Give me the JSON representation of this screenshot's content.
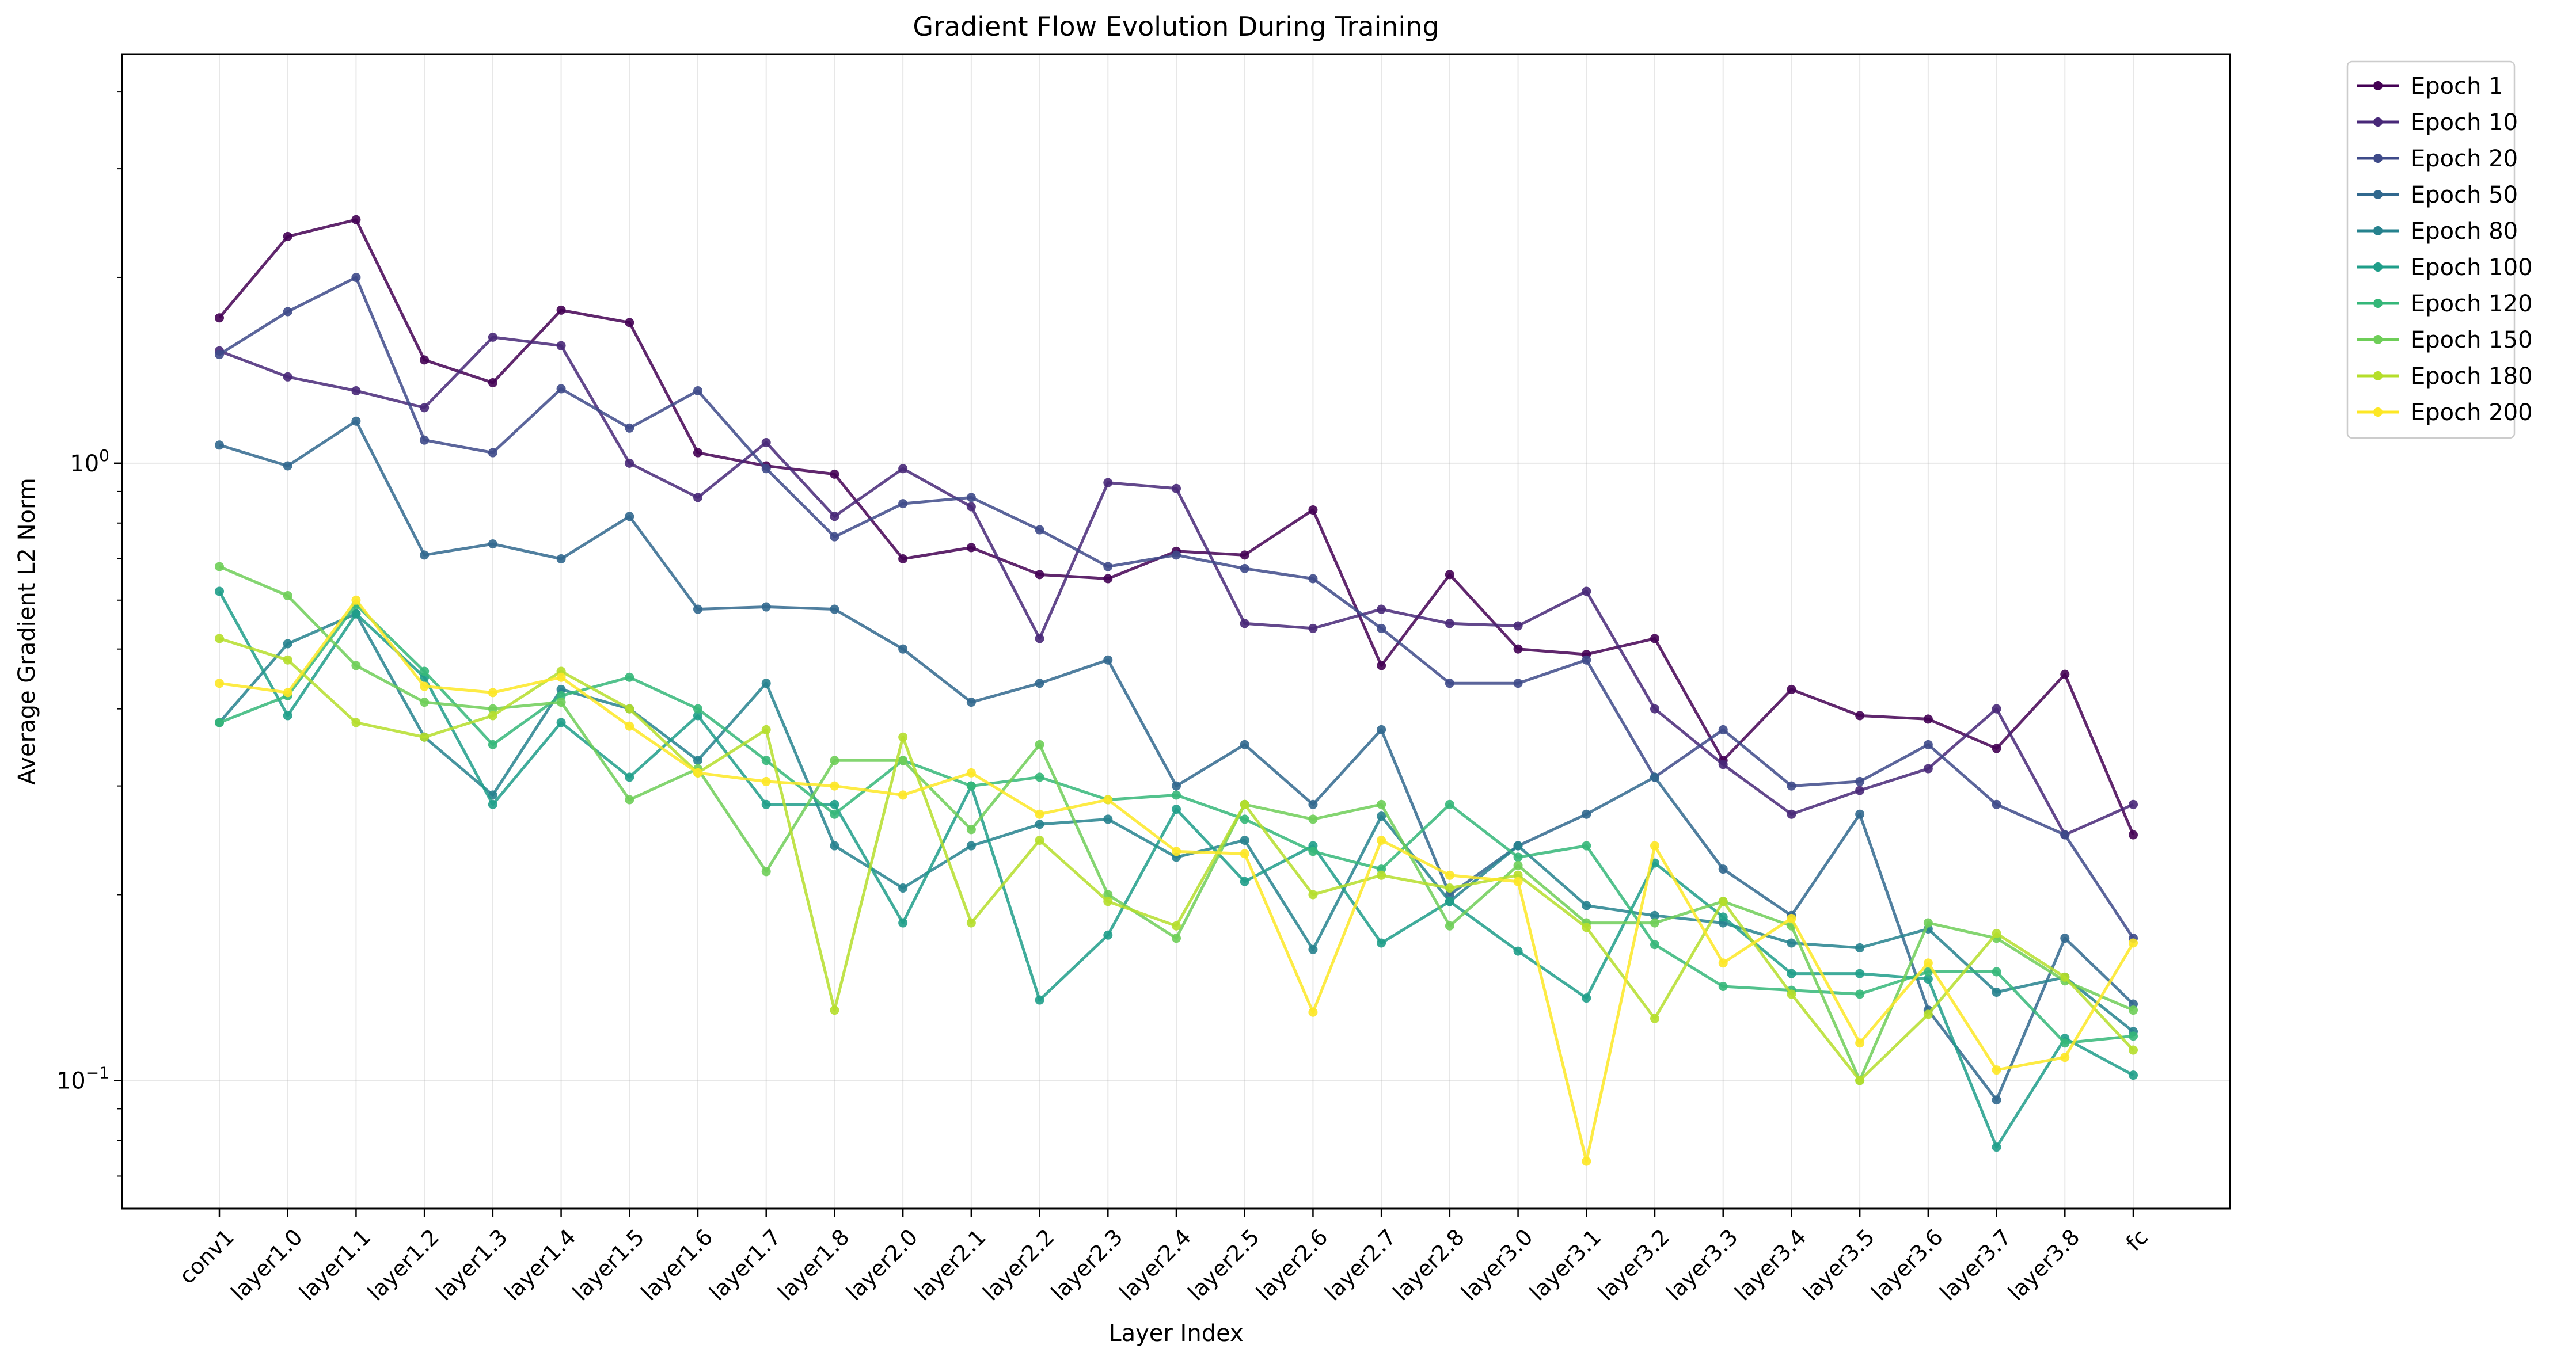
{
  "chart_data": {
    "type": "line",
    "title": "Gradient Flow Evolution During Training",
    "xlabel": "Layer Index",
    "ylabel": "Average Gradient L2 Norm",
    "yscale": "log",
    "ylim": [
      0.062,
      4.6
    ],
    "yticks": [
      {
        "value": 1.0,
        "base": "10",
        "exp": "0"
      },
      {
        "value": 0.1,
        "base": "10",
        "exp": "−1"
      }
    ],
    "grid": true,
    "legend_position": "outside-top-right",
    "categories": [
      "conv1",
      "layer1.0",
      "layer1.1",
      "layer1.2",
      "layer1.3",
      "layer1.4",
      "layer1.5",
      "layer1.6",
      "layer1.7",
      "layer1.8",
      "layer2.0",
      "layer2.1",
      "layer2.2",
      "layer2.3",
      "layer2.4",
      "layer2.5",
      "layer2.6",
      "layer2.7",
      "layer2.8",
      "layer3.0",
      "layer3.1",
      "layer3.2",
      "layer3.3",
      "layer3.4",
      "layer3.5",
      "layer3.6",
      "layer3.7",
      "layer3.8",
      "fc"
    ],
    "series": [
      {
        "name": "Epoch 1",
        "color": "#440154",
        "values": [
          1.72,
          2.33,
          2.48,
          1.47,
          1.35,
          1.77,
          1.69,
          1.04,
          0.99,
          0.96,
          0.7,
          0.73,
          0.66,
          0.65,
          0.72,
          0.71,
          0.84,
          0.47,
          0.66,
          0.5,
          0.49,
          0.52,
          0.33,
          0.43,
          0.39,
          0.385,
          0.345,
          0.455,
          0.25
        ]
      },
      {
        "name": "Epoch 10",
        "color": "#482878",
        "values": [
          1.52,
          1.38,
          1.31,
          1.23,
          1.6,
          1.55,
          1.0,
          0.88,
          1.08,
          0.82,
          0.98,
          0.85,
          0.52,
          0.93,
          0.91,
          0.55,
          0.54,
          0.58,
          0.55,
          0.545,
          0.62,
          0.4,
          0.325,
          0.27,
          0.295,
          0.32,
          0.4,
          0.25,
          0.28
        ]
      },
      {
        "name": "Epoch 20",
        "color": "#3e4a89",
        "values": [
          1.5,
          1.76,
          2.0,
          1.09,
          1.04,
          1.32,
          1.14,
          1.31,
          0.98,
          0.76,
          0.86,
          0.88,
          0.78,
          0.68,
          0.71,
          0.675,
          0.65,
          0.54,
          0.44,
          0.44,
          0.48,
          0.31,
          0.37,
          0.3,
          0.305,
          0.35,
          0.28,
          0.25,
          0.17
        ]
      },
      {
        "name": "Epoch 50",
        "color": "#31688e",
        "values": [
          1.07,
          0.99,
          1.17,
          0.71,
          0.74,
          0.7,
          0.82,
          0.58,
          0.585,
          0.58,
          0.5,
          0.41,
          0.44,
          0.48,
          0.3,
          0.35,
          0.28,
          0.37,
          0.2,
          0.24,
          0.27,
          0.31,
          0.22,
          0.185,
          0.27,
          0.13,
          0.093,
          0.17,
          0.133
        ]
      },
      {
        "name": "Epoch 80",
        "color": "#26828e",
        "values": [
          0.38,
          0.51,
          0.57,
          0.36,
          0.29,
          0.43,
          0.4,
          0.33,
          0.44,
          0.24,
          0.205,
          0.24,
          0.26,
          0.265,
          0.23,
          0.245,
          0.163,
          0.268,
          0.195,
          0.24,
          0.192,
          0.185,
          0.18,
          0.167,
          0.164,
          0.176,
          0.139,
          0.147,
          0.12
        ]
      },
      {
        "name": "Epoch 100",
        "color": "#1f9e89",
        "values": [
          0.62,
          0.39,
          0.57,
          0.45,
          0.28,
          0.38,
          0.31,
          0.39,
          0.28,
          0.28,
          0.18,
          0.3,
          0.135,
          0.172,
          0.275,
          0.21,
          0.24,
          0.167,
          0.195,
          0.162,
          0.136,
          0.225,
          0.184,
          0.149,
          0.149,
          0.146,
          0.078,
          0.117,
          0.102
        ]
      },
      {
        "name": "Epoch 120",
        "color": "#35b779",
        "values": [
          0.38,
          0.42,
          0.59,
          0.46,
          0.35,
          0.42,
          0.45,
          0.4,
          0.33,
          0.27,
          0.33,
          0.3,
          0.31,
          0.285,
          0.29,
          0.265,
          0.235,
          0.22,
          0.28,
          0.23,
          0.24,
          0.166,
          0.142,
          0.14,
          0.138,
          0.15,
          0.15,
          0.115,
          0.118
        ]
      },
      {
        "name": "Epoch 150",
        "color": "#6ece58",
        "values": [
          0.68,
          0.61,
          0.47,
          0.41,
          0.4,
          0.41,
          0.285,
          0.32,
          0.218,
          0.33,
          0.33,
          0.255,
          0.35,
          0.2,
          0.17,
          0.28,
          0.265,
          0.28,
          0.178,
          0.223,
          0.18,
          0.18,
          0.195,
          0.178,
          0.1,
          0.18,
          0.17,
          0.145,
          0.13
        ]
      },
      {
        "name": "Epoch 180",
        "color": "#b5de2b",
        "values": [
          0.52,
          0.48,
          0.38,
          0.36,
          0.39,
          0.46,
          0.4,
          0.315,
          0.37,
          0.13,
          0.36,
          0.18,
          0.245,
          0.195,
          0.178,
          0.28,
          0.2,
          0.215,
          0.205,
          0.215,
          0.177,
          0.126,
          0.195,
          0.138,
          0.1,
          0.128,
          0.173,
          0.147,
          0.112
        ]
      },
      {
        "name": "Epoch 200",
        "color": "#fde725",
        "values": [
          0.44,
          0.425,
          0.6,
          0.435,
          0.425,
          0.45,
          0.375,
          0.315,
          0.305,
          0.3,
          0.29,
          0.315,
          0.27,
          0.285,
          0.235,
          0.233,
          0.129,
          0.245,
          0.215,
          0.21,
          0.074,
          0.24,
          0.155,
          0.183,
          0.115,
          0.155,
          0.104,
          0.109,
          0.167
        ]
      }
    ]
  }
}
